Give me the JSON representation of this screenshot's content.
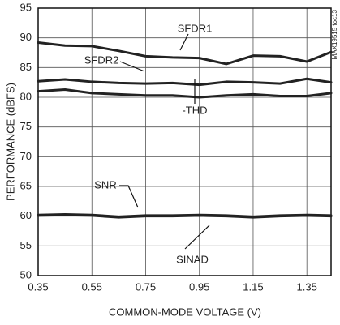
{
  "chart_data": {
    "type": "line",
    "xlabel": "COMMON-MODE VOLTAGE (V)",
    "ylabel": "PERFORMANCE (dBFS)",
    "x": [
      0.35,
      0.45,
      0.55,
      0.65,
      0.75,
      0.85,
      0.95,
      1.05,
      1.15,
      1.25,
      1.35,
      1.44
    ],
    "series": [
      {
        "name": "SFDR1",
        "color": "#222222",
        "values": [
          89.2,
          88.7,
          88.6,
          87.8,
          86.9,
          86.7,
          86.6,
          85.6,
          87.0,
          86.9,
          86.0,
          87.6
        ]
      },
      {
        "name": "SFDR2",
        "color": "#222222",
        "values": [
          82.7,
          83.0,
          82.6,
          82.4,
          82.3,
          82.4,
          82.1,
          82.6,
          82.5,
          82.3,
          83.1,
          82.5
        ]
      },
      {
        "name": "-THD",
        "color": "#222222",
        "values": [
          81.0,
          81.3,
          80.7,
          80.5,
          80.3,
          80.3,
          80.0,
          80.3,
          80.5,
          80.2,
          80.2,
          80.7
        ]
      },
      {
        "name": "SNR",
        "color": "#222222",
        "values": [
          60.2,
          60.3,
          60.2,
          59.9,
          60.1,
          60.1,
          60.2,
          60.1,
          59.9,
          60.1,
          60.2,
          60.1
        ]
      },
      {
        "name": "SINAD",
        "color": "#222222",
        "values": [
          60.1,
          60.2,
          60.1,
          59.8,
          60.0,
          60.0,
          60.1,
          60.0,
          59.8,
          60.0,
          60.1,
          60.0
        ]
      }
    ],
    "annotations": [
      "MAX19515 toc13"
    ],
    "xlim": [
      0.35,
      1.44
    ],
    "ylim": [
      50,
      95
    ],
    "xticks": [
      0.35,
      0.55,
      0.75,
      0.95,
      1.15,
      1.35
    ],
    "yticks": [
      50,
      55,
      60,
      65,
      70,
      75,
      80,
      85,
      90,
      95
    ],
    "grid": true
  }
}
